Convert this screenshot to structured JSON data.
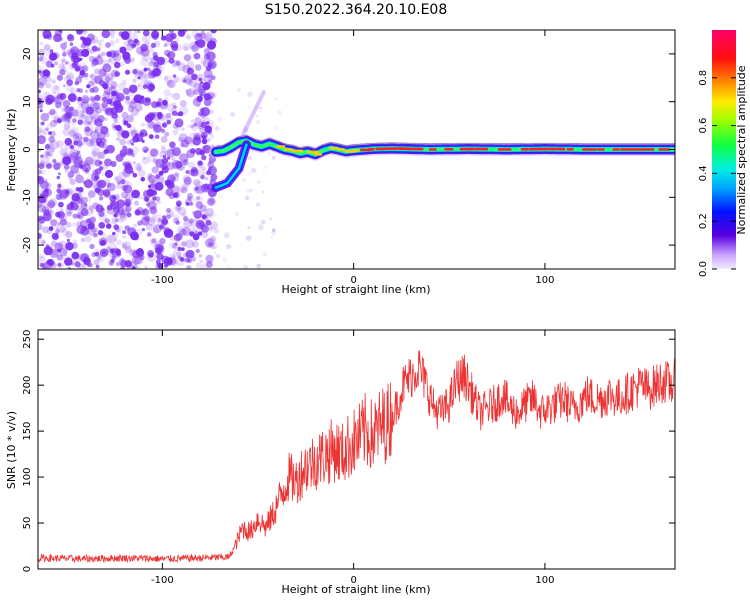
{
  "title": "S150.2022.364.20.10.E08",
  "colors": {
    "snr_line": "#ee3333",
    "spectrogram_noise": "#7a2cf0",
    "axis": "#000000"
  },
  "chart_data": [
    {
      "type": "heatmap",
      "name": "spectrogram",
      "xlabel": "Height of straight line (km)",
      "ylabel": "Frequency (Hz)",
      "xlim": [
        -165,
        168
      ],
      "ylim": [
        -25,
        25
      ],
      "x_ticks": [
        -100,
        0,
        100
      ],
      "y_ticks": [
        -20,
        -10,
        0,
        10,
        20
      ],
      "grid": false,
      "colorbar": {
        "label": "Normalized spectral amplitude",
        "range": [
          0,
          1
        ],
        "ticks": [
          0.0,
          0.2,
          0.4,
          0.6,
          0.8
        ],
        "colormap": "rainbow (white-violet-blue-cyan-green-yellow-red-magenta)"
      },
      "features": {
        "noise_region_x": [
          -165,
          -73
        ],
        "signal_track": {
          "x": [
            -72,
            -68,
            -64,
            -60,
            -56,
            -52,
            -48,
            -44,
            -40,
            -36,
            -32,
            -28,
            -24,
            -20,
            -16,
            -12,
            -8,
            -4,
            0,
            10,
            20,
            40,
            60,
            80,
            100,
            120,
            140,
            160,
            168
          ],
          "y": [
            -0.5,
            -0.3,
            0.5,
            1.5,
            1.8,
            1.0,
            0.6,
            1.2,
            0.6,
            0.0,
            -0.3,
            -0.8,
            -0.5,
            -1.0,
            -0.2,
            0.3,
            0.0,
            -0.4,
            -0.2,
            0.1,
            0.2,
            0.0,
            0.1,
            0.0,
            0.1,
            0.0,
            0.0,
            0.0,
            0.0
          ]
        },
        "secondary_trace": {
          "x": [
            -72,
            -66,
            -60,
            -56
          ],
          "y": [
            -8,
            -7,
            -4,
            1
          ]
        }
      }
    },
    {
      "type": "line",
      "name": "snr",
      "xlabel": "Height of straight line (km)",
      "ylabel": "SNR (10 * v/v)",
      "xlim": [
        -165,
        168
      ],
      "ylim": [
        0,
        260
      ],
      "x_ticks": [
        -100,
        0,
        100
      ],
      "y_ticks": [
        0,
        50,
        100,
        150,
        200,
        250
      ],
      "grid": false,
      "series": [
        {
          "x": [
            -165,
            -140,
            -120,
            -100,
            -80,
            -65,
            -62,
            -58,
            -54,
            -50,
            -46,
            -42,
            -38,
            -34,
            -30,
            -26,
            -22,
            -18,
            -14,
            -10,
            -6,
            -2,
            2,
            6,
            10,
            14,
            18,
            22,
            26,
            30,
            34,
            38,
            42,
            46,
            50,
            54,
            58,
            62,
            66,
            70,
            74,
            78,
            82,
            86,
            90,
            94,
            98,
            102,
            106,
            110,
            114,
            118,
            122,
            126,
            130,
            134,
            138,
            142,
            146,
            150,
            154,
            158,
            162,
            166,
            168
          ],
          "y": [
            12,
            11,
            12,
            11,
            12,
            13,
            25,
            45,
            40,
            55,
            45,
            60,
            80,
            100,
            95,
            110,
            115,
            120,
            125,
            130,
            125,
            135,
            140,
            150,
            145,
            155,
            160,
            175,
            200,
            210,
            220,
            200,
            175,
            170,
            180,
            205,
            210,
            190,
            170,
            175,
            180,
            190,
            175,
            170,
            180,
            185,
            170,
            175,
            180,
            185,
            175,
            180,
            190,
            185,
            185,
            190,
            185,
            190,
            195,
            200,
            195,
            200,
            205,
            200,
            205
          ]
        }
      ]
    }
  ]
}
